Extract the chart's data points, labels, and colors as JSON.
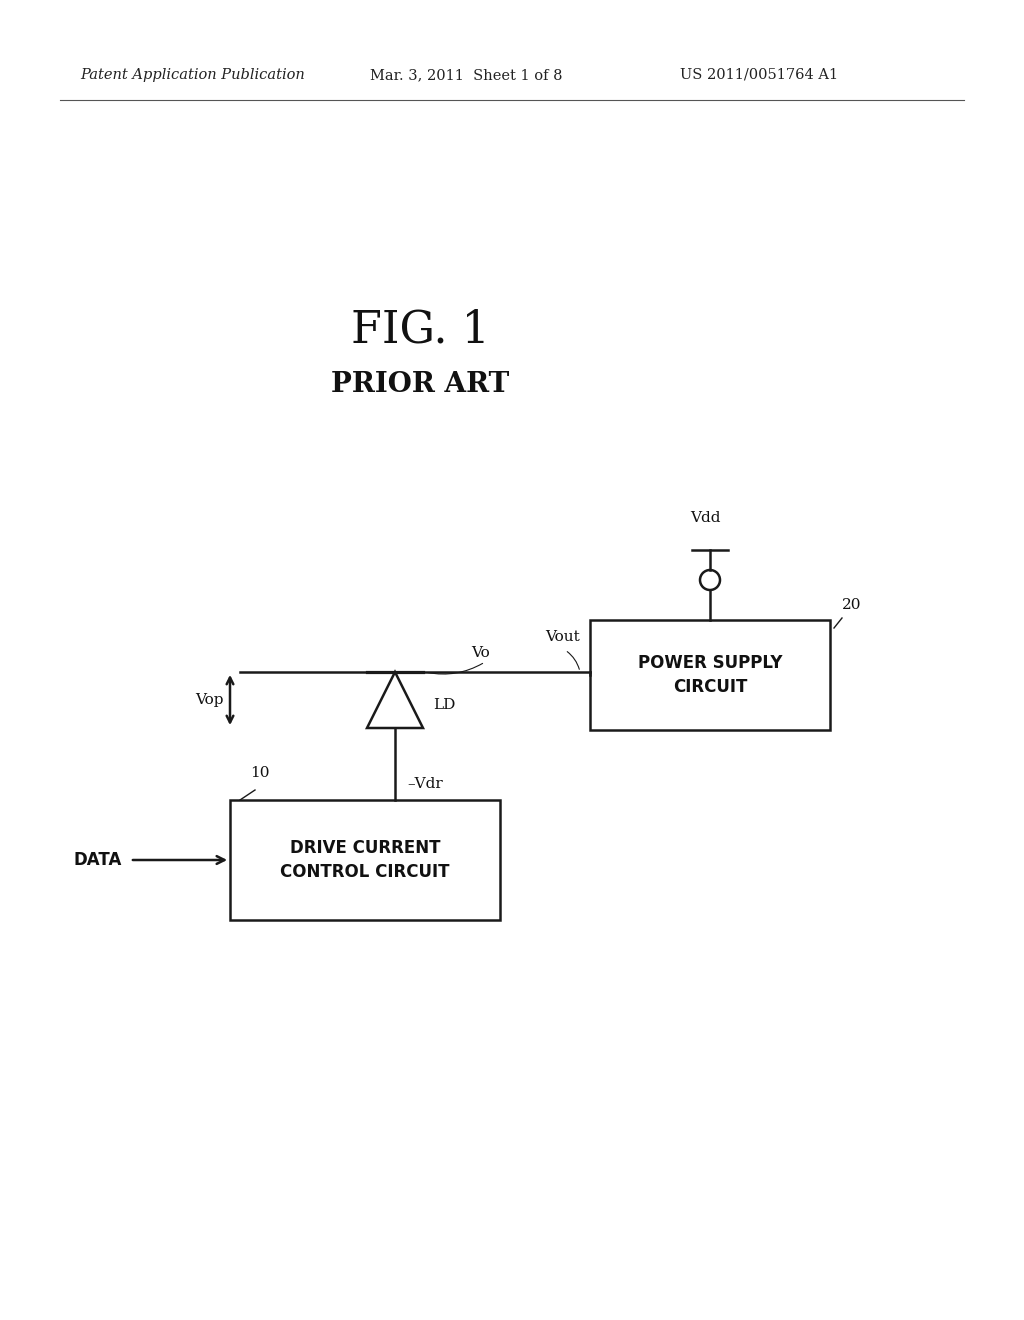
{
  "bg_color": "#ffffff",
  "fig_title": "FIG. 1",
  "fig_subtitle": "PRIOR ART",
  "header_left": "Patent Application Publication",
  "header_mid": "Mar. 3, 2011  Sheet 1 of 8",
  "header_right": "US 2011/0051764 A1",
  "line_color": "#1a1a1a",
  "line_width": 1.8,
  "box_dc_label1": "DRIVE CURRENT",
  "box_dc_label2": "CONTROL CIRCUIT",
  "box_ps_label1": "POWER SUPPLY",
  "box_ps_label2": "CIRCUIT",
  "label_data": "DATA",
  "label_vop": "Vop",
  "label_ld": "LD",
  "label_vo": "Vo",
  "label_vout": "Vout",
  "label_vdr": "–Vdr",
  "label_vdd": "Vdd",
  "label_10": "10",
  "label_20": "20"
}
